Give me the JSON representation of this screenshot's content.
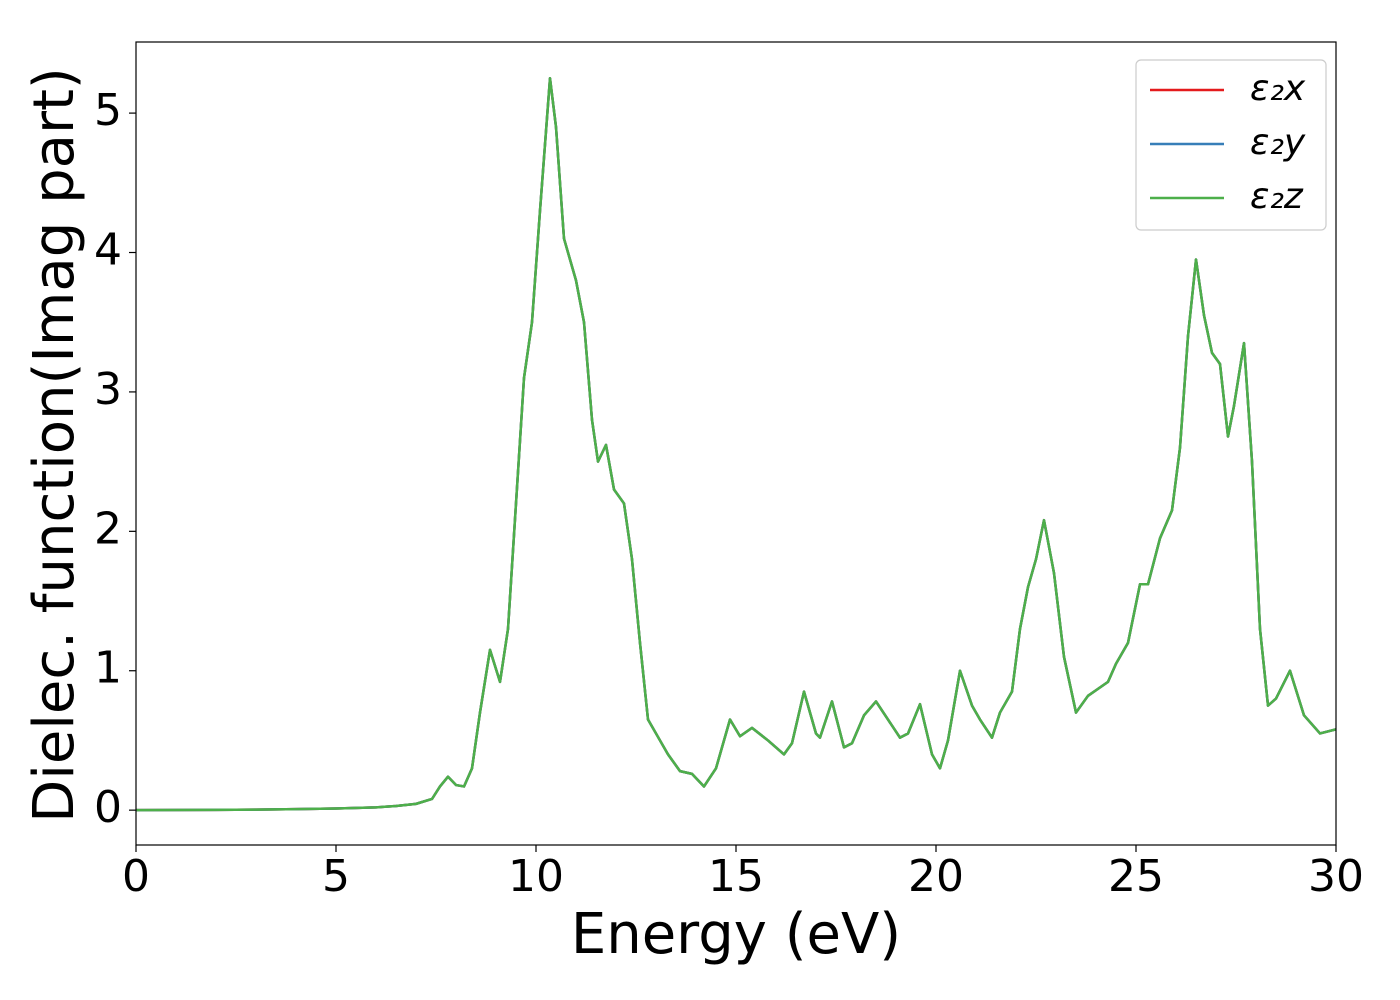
{
  "chart_data": {
    "type": "line",
    "xlabel": "Energy (eV)",
    "ylabel": "Dielec. function(Imag part)",
    "x": [
      0,
      1,
      2,
      3,
      4,
      5,
      6,
      6.5,
      7,
      7.4,
      7.6,
      7.8,
      8.0,
      8.2,
      8.4,
      8.6,
      8.85,
      9.1,
      9.3,
      9.5,
      9.7,
      9.9,
      10.1,
      10.35,
      10.5,
      10.7,
      11.0,
      11.2,
      11.4,
      11.55,
      11.75,
      11.95,
      12.2,
      12.4,
      12.6,
      12.8,
      13.1,
      13.3,
      13.6,
      13.9,
      14.2,
      14.5,
      14.85,
      15.1,
      15.4,
      15.8,
      16.2,
      16.4,
      16.7,
      17.0,
      17.1,
      17.4,
      17.7,
      17.9,
      18.2,
      18.5,
      18.8,
      19.1,
      19.3,
      19.6,
      19.9,
      20.1,
      20.3,
      20.6,
      20.9,
      21.1,
      21.4,
      21.6,
      21.9,
      22.1,
      22.3,
      22.5,
      22.7,
      22.95,
      23.2,
      23.5,
      23.8,
      24.0,
      24.3,
      24.5,
      24.8,
      25.1,
      25.3,
      25.6,
      25.9,
      26.1,
      26.3,
      26.5,
      26.7,
      26.9,
      27.1,
      27.3,
      27.45,
      27.7,
      27.9,
      28.1,
      28.3,
      28.5,
      28.85,
      29.2,
      29.6,
      30
    ],
    "series": [
      {
        "name": "ε₂x",
        "color": "#e41a1c",
        "values": [
          0,
          0.001,
          0.002,
          0.004,
          0.007,
          0.012,
          0.02,
          0.03,
          0.045,
          0.08,
          0.17,
          0.24,
          0.18,
          0.17,
          0.3,
          0.7,
          1.15,
          0.92,
          1.3,
          2.2,
          3.1,
          3.5,
          4.3,
          5.25,
          4.9,
          4.1,
          3.8,
          3.5,
          2.8,
          2.5,
          2.62,
          2.3,
          2.2,
          1.8,
          1.2,
          0.65,
          0.5,
          0.4,
          0.28,
          0.26,
          0.17,
          0.3,
          0.65,
          0.53,
          0.59,
          0.5,
          0.4,
          0.48,
          0.85,
          0.55,
          0.52,
          0.78,
          0.45,
          0.48,
          0.68,
          0.78,
          0.65,
          0.52,
          0.55,
          0.76,
          0.4,
          0.3,
          0.5,
          1.0,
          0.75,
          0.65,
          0.52,
          0.7,
          0.85,
          1.3,
          1.6,
          1.8,
          2.08,
          1.7,
          1.1,
          0.7,
          0.82,
          0.86,
          0.92,
          1.05,
          1.2,
          1.62,
          1.62,
          1.95,
          2.15,
          2.6,
          3.4,
          3.95,
          3.55,
          3.28,
          3.2,
          2.68,
          2.9,
          3.35,
          2.5,
          1.3,
          0.75,
          0.8,
          1.0,
          0.68,
          0.55,
          0.58
        ]
      },
      {
        "name": "ε₂y",
        "color": "#377eb8",
        "values": [
          0,
          0.001,
          0.002,
          0.004,
          0.007,
          0.012,
          0.02,
          0.03,
          0.045,
          0.08,
          0.17,
          0.24,
          0.18,
          0.17,
          0.3,
          0.7,
          1.15,
          0.92,
          1.3,
          2.2,
          3.1,
          3.5,
          4.3,
          5.25,
          4.9,
          4.1,
          3.8,
          3.5,
          2.8,
          2.5,
          2.62,
          2.3,
          2.2,
          1.8,
          1.2,
          0.65,
          0.5,
          0.4,
          0.28,
          0.26,
          0.17,
          0.3,
          0.65,
          0.53,
          0.59,
          0.5,
          0.4,
          0.48,
          0.85,
          0.55,
          0.52,
          0.78,
          0.45,
          0.48,
          0.68,
          0.78,
          0.65,
          0.52,
          0.55,
          0.76,
          0.4,
          0.3,
          0.5,
          1.0,
          0.75,
          0.65,
          0.52,
          0.7,
          0.85,
          1.3,
          1.6,
          1.8,
          2.08,
          1.7,
          1.1,
          0.7,
          0.82,
          0.86,
          0.92,
          1.05,
          1.2,
          1.62,
          1.62,
          1.95,
          2.15,
          2.6,
          3.4,
          3.95,
          3.55,
          3.28,
          3.2,
          2.68,
          2.9,
          3.35,
          2.5,
          1.3,
          0.75,
          0.8,
          1.0,
          0.68,
          0.55,
          0.58
        ]
      },
      {
        "name": "ε₂z",
        "color": "#4daf4a",
        "values": [
          0,
          0.001,
          0.002,
          0.004,
          0.007,
          0.012,
          0.02,
          0.03,
          0.045,
          0.08,
          0.17,
          0.24,
          0.18,
          0.17,
          0.3,
          0.7,
          1.15,
          0.92,
          1.3,
          2.2,
          3.1,
          3.5,
          4.3,
          5.25,
          4.9,
          4.1,
          3.8,
          3.5,
          2.8,
          2.5,
          2.62,
          2.3,
          2.2,
          1.8,
          1.2,
          0.65,
          0.5,
          0.4,
          0.28,
          0.26,
          0.17,
          0.3,
          0.65,
          0.53,
          0.59,
          0.5,
          0.4,
          0.48,
          0.85,
          0.55,
          0.52,
          0.78,
          0.45,
          0.48,
          0.68,
          0.78,
          0.65,
          0.52,
          0.55,
          0.76,
          0.4,
          0.3,
          0.5,
          1.0,
          0.75,
          0.65,
          0.52,
          0.7,
          0.85,
          1.3,
          1.6,
          1.8,
          2.08,
          1.7,
          1.1,
          0.7,
          0.82,
          0.86,
          0.92,
          1.05,
          1.2,
          1.62,
          1.62,
          1.95,
          2.15,
          2.6,
          3.4,
          3.95,
          3.55,
          3.28,
          3.2,
          2.68,
          2.9,
          3.35,
          2.5,
          1.3,
          0.75,
          0.8,
          1.0,
          0.68,
          0.55,
          0.58
        ]
      }
    ],
    "xlim": [
      0,
      30
    ],
    "xticks": [
      0,
      5,
      10,
      15,
      20,
      25,
      30
    ],
    "ylim": [
      -0.25,
      5.51
    ],
    "yticks": [
      0,
      1,
      2,
      3,
      4,
      5
    ],
    "grid": false,
    "legend": "upper right"
  }
}
